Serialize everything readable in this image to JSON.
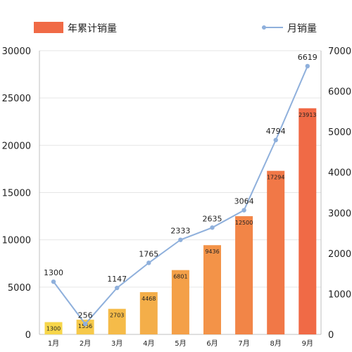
{
  "chart_data": {
    "type": "bar",
    "categories": [
      "1月",
      "2月",
      "3月",
      "4月",
      "5月",
      "6月",
      "7月",
      "8月",
      "9月"
    ],
    "series": [
      {
        "name": "年累计销量",
        "type": "bar",
        "axis": "left",
        "values": [
          1300,
          1556,
          2703,
          4468,
          6801,
          9436,
          12500,
          17294,
          23913
        ]
      },
      {
        "name": "月销量",
        "type": "line",
        "axis": "right",
        "values": [
          1300,
          256,
          1147,
          1765,
          2333,
          2635,
          3064,
          4794,
          6619
        ]
      }
    ],
    "y_left": {
      "lim": [
        0,
        30000
      ],
      "ticks": [
        0,
        5000,
        10000,
        15000,
        20000,
        25000,
        30000
      ]
    },
    "y_right": {
      "lim": [
        0,
        7000
      ],
      "ticks": [
        0,
        1000,
        2000,
        3000,
        4000,
        5000,
        6000,
        7000
      ]
    },
    "grid": true,
    "legend": "top",
    "colors": {
      "bar_start": "#f7d64a",
      "bar_end": "#f06a46",
      "line": "#8fb0dc",
      "grid": "#e6e6e6",
      "axis": "#bfbfbf"
    }
  }
}
